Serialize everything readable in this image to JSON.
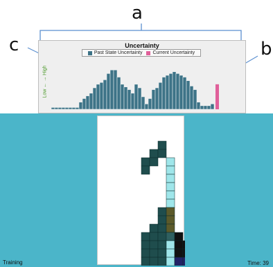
{
  "annotations": {
    "a": "a",
    "b": "b",
    "c": "c"
  },
  "chart_data": {
    "type": "bar",
    "title": "Uncertainty",
    "ylabel": "Low ←  → High",
    "legend": [
      "Past State Uncertainty",
      "Current Uncertainty"
    ],
    "colors": {
      "past": "#3d7387",
      "current": "#e0609a"
    },
    "series": [
      {
        "name": "Past State Uncertainty",
        "values": [
          2,
          2,
          2,
          2,
          2,
          2,
          2,
          2,
          8,
          12,
          15,
          18,
          24,
          28,
          30,
          33,
          40,
          44,
          44,
          36,
          28,
          25,
          22,
          18,
          28,
          24,
          14,
          6,
          12,
          22,
          24,
          30,
          36,
          38,
          40,
          42,
          40,
          38,
          36,
          32,
          26,
          22,
          8,
          4,
          4,
          4,
          6
        ]
      },
      {
        "name": "Current Uncertainty",
        "values": [
          28
        ]
      }
    ],
    "ylim": [
      0,
      48
    ]
  },
  "status": {
    "mode": "Training",
    "time": "Time: 39"
  },
  "board_cells": [
    {
      "c": 7,
      "r": 3,
      "color": "#1f4d4d"
    },
    {
      "c": 6,
      "r": 4,
      "color": "#1f4d4d"
    },
    {
      "c": 7,
      "r": 4,
      "color": "#1f4d4d"
    },
    {
      "c": 5,
      "r": 5,
      "color": "#1f4d4d"
    },
    {
      "c": 6,
      "r": 5,
      "color": "#1f4d4d"
    },
    {
      "c": 5,
      "r": 6,
      "color": "#1f4d4d"
    },
    {
      "c": 7,
      "r": 11,
      "color": "#1f4d4d"
    },
    {
      "c": 7,
      "r": 12,
      "color": "#1f4d4d"
    },
    {
      "c": 6,
      "r": 13,
      "color": "#1f4d4d"
    },
    {
      "c": 7,
      "r": 13,
      "color": "#1f4d4d"
    },
    {
      "c": 5,
      "r": 14,
      "color": "#1f4d4d"
    },
    {
      "c": 6,
      "r": 14,
      "color": "#1f4d4d"
    },
    {
      "c": 7,
      "r": 14,
      "color": "#1f4d4d"
    },
    {
      "c": 5,
      "r": 15,
      "color": "#1f4d4d"
    },
    {
      "c": 6,
      "r": 15,
      "color": "#1f4d4d"
    },
    {
      "c": 7,
      "r": 15,
      "color": "#1f4d4d"
    },
    {
      "c": 5,
      "r": 16,
      "color": "#1f4d4d"
    },
    {
      "c": 6,
      "r": 16,
      "color": "#1f4d4d"
    },
    {
      "c": 7,
      "r": 16,
      "color": "#1f4d4d"
    },
    {
      "c": 5,
      "r": 17,
      "color": "#1f4d4d"
    },
    {
      "c": 6,
      "r": 17,
      "color": "#1f4d4d"
    },
    {
      "c": 7,
      "r": 17,
      "color": "#1f4d4d"
    },
    {
      "c": 8,
      "r": 5,
      "color": "#9fe6ea"
    },
    {
      "c": 8,
      "r": 6,
      "color": "#9fe6ea"
    },
    {
      "c": 8,
      "r": 7,
      "color": "#9fe6ea"
    },
    {
      "c": 8,
      "r": 8,
      "color": "#9fe6ea"
    },
    {
      "c": 8,
      "r": 9,
      "color": "#9fe6ea"
    },
    {
      "c": 8,
      "r": 10,
      "color": "#9fe6ea"
    },
    {
      "c": 8,
      "r": 11,
      "color": "#5c5a2a"
    },
    {
      "c": 8,
      "r": 12,
      "color": "#5c5a2a"
    },
    {
      "c": 8,
      "r": 13,
      "color": "#5c5a2a"
    },
    {
      "c": 8,
      "r": 14,
      "color": "#2f6060"
    },
    {
      "c": 8,
      "r": 15,
      "color": "#9fe6ea"
    },
    {
      "c": 8,
      "r": 16,
      "color": "#9fe6ea"
    },
    {
      "c": 8,
      "r": 17,
      "color": "#9fe6ea"
    },
    {
      "c": 9,
      "r": 14,
      "color": "#111111"
    },
    {
      "c": 9,
      "r": 15,
      "color": "#111111"
    },
    {
      "c": 10,
      "r": 15,
      "color": "#111111"
    },
    {
      "c": 9,
      "r": 16,
      "color": "#111111"
    },
    {
      "c": 10,
      "r": 16,
      "color": "#111111"
    },
    {
      "c": 9,
      "r": 17,
      "color": "#222266"
    },
    {
      "c": 10,
      "r": 17,
      "color": "#222266"
    }
  ]
}
